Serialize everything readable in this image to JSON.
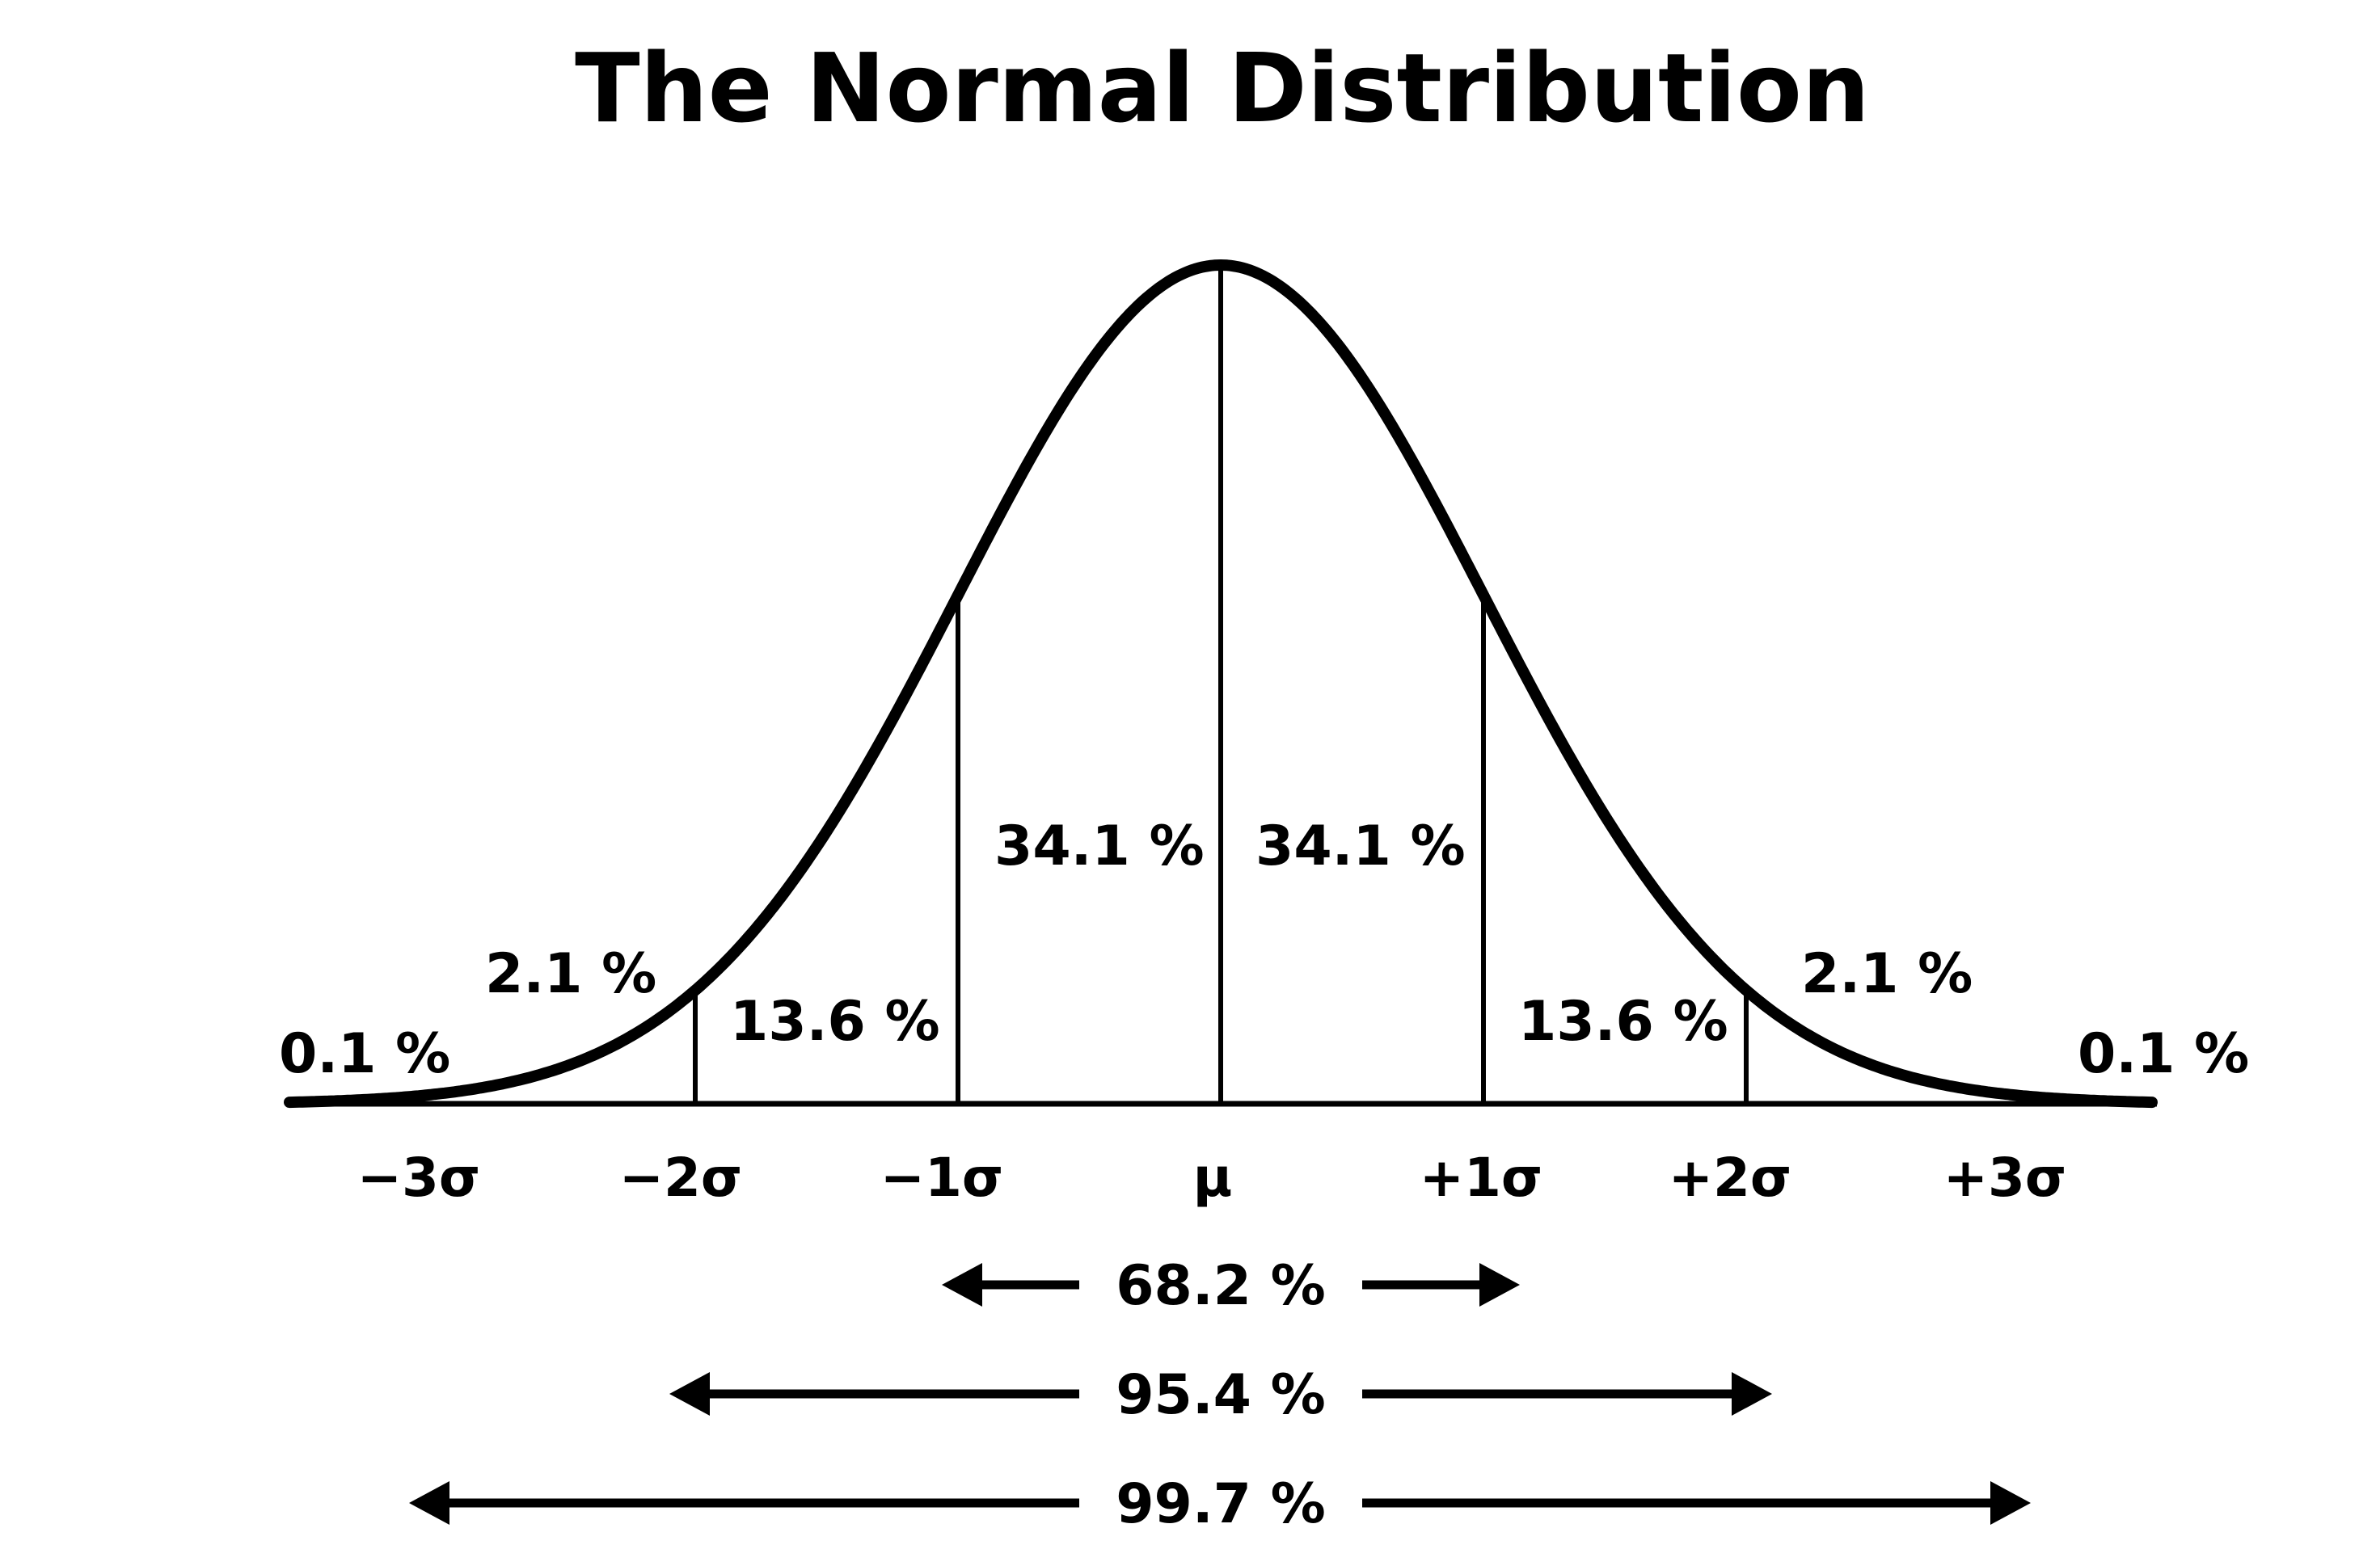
{
  "title": "The Normal Distribution",
  "segments": {
    "left_tail": "0.1 %",
    "left_2sd": "2.1 %",
    "left_1sd": "13.6 %",
    "left_center": "34.1 %",
    "right_center": "34.1 %",
    "right_1sd": "13.6 %",
    "right_2sd": "2.1 %",
    "right_tail": "0.1 %"
  },
  "ticks": [
    "−3σ",
    "−2σ",
    "−1σ",
    "μ",
    "+1σ",
    "+2σ",
    "+3σ"
  ],
  "ranges": [
    {
      "label": "68.2 %",
      "from_sigma": -1,
      "to_sigma": 1
    },
    {
      "label": "95.4 %",
      "from_sigma": -2,
      "to_sigma": 2
    },
    {
      "label": "99.7 %",
      "from_sigma": -3,
      "to_sigma": 3
    }
  ],
  "colors": {
    "ink": "#000000",
    "background": "#ffffff"
  }
}
